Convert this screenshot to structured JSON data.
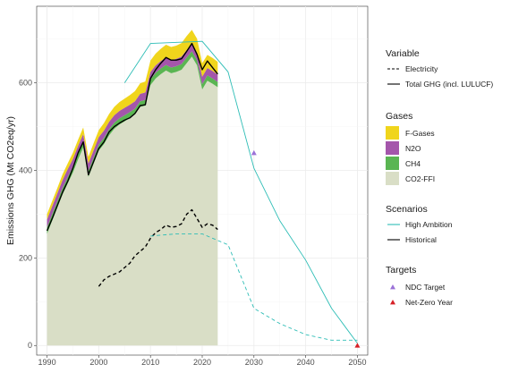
{
  "chart_data": {
    "type": "area",
    "ylabel": "Emissions GHG (Mt CO2eq/yr)",
    "xlabel": "",
    "xlim": [
      1988,
      2052
    ],
    "ylim": [
      -22,
      775
    ],
    "x_ticks": [
      1990,
      2000,
      2010,
      2020,
      2030,
      2040,
      2050
    ],
    "y_ticks": [
      0,
      200,
      400,
      600
    ],
    "grid": true,
    "legend_position": "right",
    "years": [
      1990,
      1991,
      1992,
      1993,
      1994,
      1995,
      1996,
      1997,
      1998,
      1999,
      2000,
      2001,
      2002,
      2003,
      2004,
      2005,
      2006,
      2007,
      2008,
      2009,
      2010,
      2011,
      2012,
      2013,
      2014,
      2015,
      2016,
      2017,
      2018,
      2019,
      2020,
      2021,
      2022,
      2023
    ],
    "gases": [
      {
        "name": "CO2-FFI",
        "color": "#d9dec6",
        "values": [
          255,
          285,
          315,
          345,
          370,
          395,
          425,
          452,
          385,
          415,
          445,
          460,
          480,
          495,
          505,
          512,
          520,
          528,
          545,
          548,
          595,
          610,
          620,
          628,
          622,
          625,
          630,
          645,
          660,
          640,
          585,
          605,
          598,
          590
        ]
      },
      {
        "name": "CH4",
        "color": "#5ab552",
        "values": [
          15,
          15,
          15,
          15,
          15,
          14,
          14,
          14,
          14,
          14,
          14,
          14,
          14,
          14,
          14,
          14,
          13,
          13,
          13,
          13,
          13,
          13,
          13,
          13,
          13,
          13,
          13,
          13,
          12,
          12,
          12,
          12,
          12,
          12
        ]
      },
      {
        "name": "N2O",
        "color": "#a456ab",
        "values": [
          18,
          18,
          18,
          18,
          18,
          17,
          17,
          17,
          17,
          17,
          17,
          17,
          17,
          17,
          17,
          17,
          17,
          17,
          17,
          17,
          17,
          17,
          17,
          17,
          17,
          17,
          17,
          17,
          17,
          17,
          17,
          17,
          17,
          17
        ]
      },
      {
        "name": "F-Gases",
        "color": "#f0d51c",
        "values": [
          12,
          12,
          12,
          13,
          13,
          14,
          14,
          15,
          15,
          16,
          16,
          17,
          18,
          19,
          20,
          21,
          22,
          23,
          24,
          25,
          26,
          27,
          28,
          29,
          30,
          30,
          31,
          32,
          32,
          32,
          31,
          30,
          30,
          29
        ]
      }
    ],
    "series": [
      {
        "name": "Total GHG (incl. LULUCF)",
        "scenario": "Historical",
        "color": "#000000",
        "dash": "solid",
        "x": [
          1990,
          1991,
          1992,
          1993,
          1994,
          1995,
          1996,
          1997,
          1998,
          1999,
          2000,
          2001,
          2002,
          2003,
          2004,
          2005,
          2006,
          2007,
          2008,
          2009,
          2010,
          2011,
          2012,
          2013,
          2014,
          2015,
          2016,
          2017,
          2018,
          2019,
          2020,
          2021,
          2022,
          2023
        ],
        "y": [
          262,
          290,
          320,
          350,
          375,
          405,
          440,
          465,
          390,
          420,
          450,
          465,
          488,
          500,
          508,
          515,
          520,
          530,
          548,
          550,
          610,
          630,
          645,
          658,
          652,
          652,
          655,
          672,
          690,
          665,
          630,
          650,
          635,
          620
        ]
      },
      {
        "name": "Electricity",
        "scenario": "Historical",
        "color": "#000000",
        "dash": "dashed",
        "x": [
          2000,
          2001,
          2002,
          2003,
          2004,
          2005,
          2006,
          2007,
          2008,
          2009,
          2010,
          2011,
          2012,
          2013,
          2014,
          2015,
          2016,
          2017,
          2018,
          2019,
          2020,
          2021,
          2022,
          2023
        ],
        "y": [
          135,
          150,
          158,
          163,
          168,
          178,
          188,
          205,
          215,
          225,
          245,
          258,
          265,
          275,
          270,
          272,
          278,
          300,
          310,
          290,
          270,
          278,
          275,
          265
        ]
      },
      {
        "name": "Total GHG (incl. LULUCF)",
        "scenario": "High Ambition",
        "color": "#2ebdb6",
        "dash": "solid",
        "x": [
          2005,
          2010,
          2020,
          2025,
          2030,
          2035,
          2040,
          2045,
          2050
        ],
        "y": [
          600,
          690,
          695,
          625,
          405,
          285,
          195,
          85,
          5
        ]
      },
      {
        "name": "Electricity",
        "scenario": "High Ambition",
        "color": "#2ebdb6",
        "dash": "dashed",
        "x": [
          2010,
          2015,
          2020,
          2025,
          2030,
          2035,
          2040,
          2045,
          2050
        ],
        "y": [
          250,
          255,
          255,
          230,
          85,
          50,
          25,
          12,
          12
        ]
      }
    ],
    "targets": [
      {
        "name": "NDC Target",
        "x": 2030,
        "y": 440,
        "color": "#9b72d8"
      },
      {
        "name": "Net-Zero Year",
        "x": 2050,
        "y": 0,
        "color": "#d62127"
      }
    ]
  },
  "legend": {
    "variable": {
      "title": "Variable",
      "items": [
        {
          "label": "Electricity",
          "dash": "dashed"
        },
        {
          "label": "Total GHG (incl. LULUCF)",
          "dash": "solid"
        }
      ]
    },
    "gases": {
      "title": "Gases",
      "items": [
        {
          "label": "F-Gases",
          "color": "#f0d51c"
        },
        {
          "label": "N2O",
          "color": "#a456ab"
        },
        {
          "label": "CH4",
          "color": "#5ab552"
        },
        {
          "label": "CO2-FFI",
          "color": "#d9dec6"
        }
      ]
    },
    "scenarios": {
      "title": "Scenarios",
      "items": [
        {
          "label": "High Ambition",
          "color": "#2ebdb6"
        },
        {
          "label": "Historical",
          "color": "#000000"
        }
      ]
    },
    "targets": {
      "title": "Targets",
      "items": [
        {
          "label": "NDC Target",
          "color": "#9b72d8"
        },
        {
          "label": "Net-Zero Year",
          "color": "#d62127"
        }
      ]
    }
  }
}
